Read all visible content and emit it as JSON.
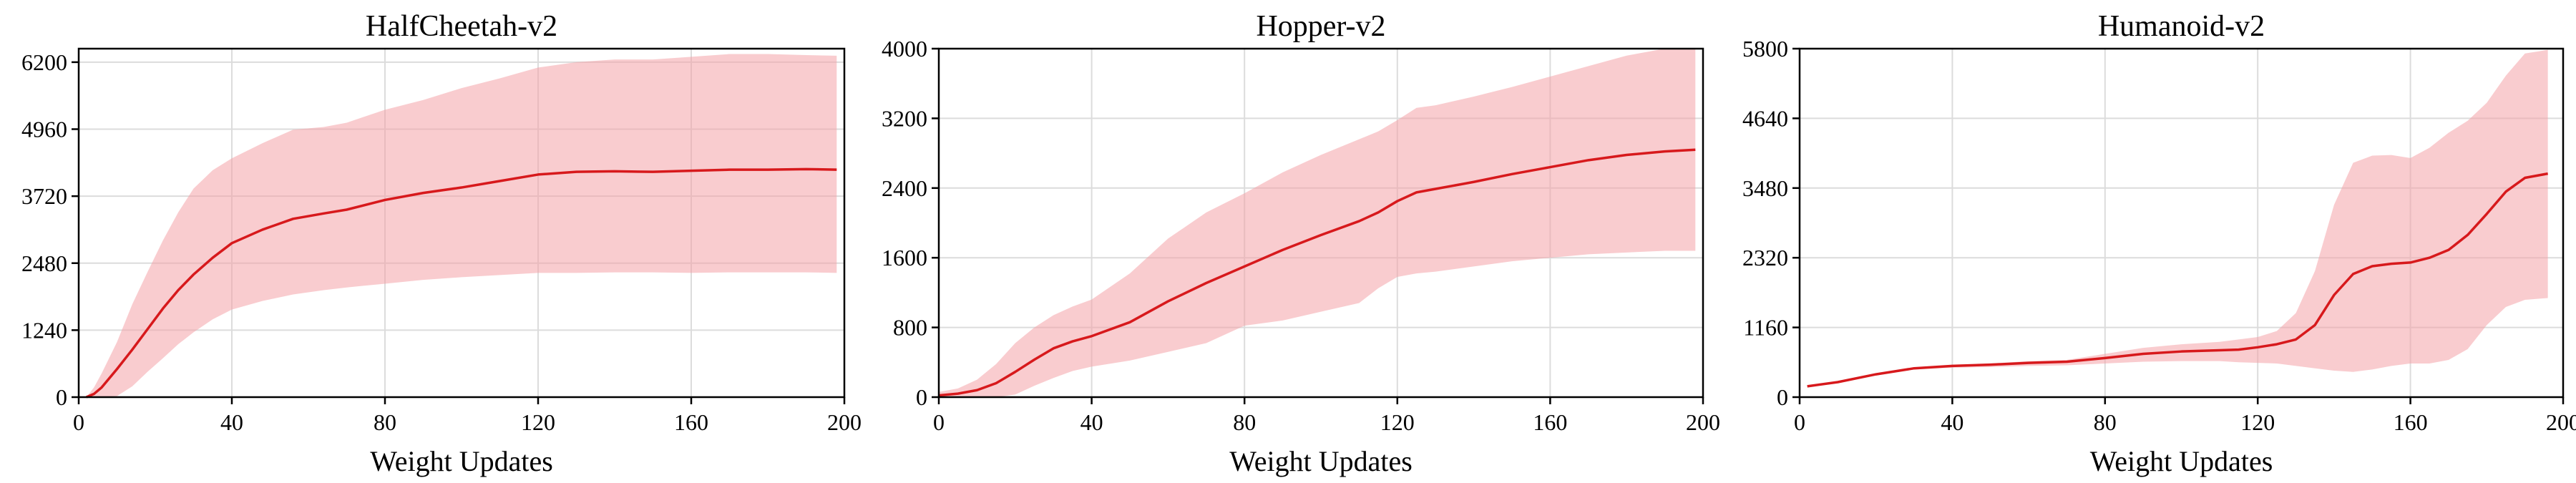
{
  "chart_data": [
    {
      "type": "line",
      "title": "HalfCheetah-v2",
      "xlabel": "Weight Updates",
      "ylabel": "",
      "xlim": [
        0,
        200
      ],
      "ylim": [
        0,
        6450
      ],
      "xticks": [
        "0",
        "40",
        "80",
        "120",
        "160",
        "200"
      ],
      "yticks": [
        "0",
        "1240",
        "2480",
        "3720",
        "4960",
        "6200"
      ],
      "grid": true,
      "colors": {
        "line": "#d7191c",
        "band": "#f4a3a8"
      },
      "series": [
        {
          "x": [
            2,
            4,
            6,
            10,
            14,
            18,
            22,
            26,
            30,
            35,
            40,
            48,
            56,
            64,
            70,
            80,
            90,
            100,
            110,
            120,
            130,
            140,
            150,
            160,
            170,
            180,
            190,
            198
          ],
          "mean": [
            0,
            60,
            180,
            520,
            880,
            1260,
            1640,
            1980,
            2270,
            2580,
            2850,
            3100,
            3300,
            3400,
            3470,
            3650,
            3780,
            3880,
            4000,
            4120,
            4170,
            4180,
            4170,
            4190,
            4210,
            4210,
            4220,
            4210
          ],
          "lower": [
            0,
            0,
            0,
            20,
            200,
            470,
            720,
            980,
            1200,
            1440,
            1620,
            1780,
            1900,
            1980,
            2030,
            2100,
            2170,
            2220,
            2260,
            2300,
            2300,
            2310,
            2310,
            2300,
            2310,
            2310,
            2310,
            2300
          ],
          "upper": [
            0,
            180,
            440,
            1020,
            1720,
            2320,
            2900,
            3420,
            3860,
            4200,
            4420,
            4700,
            4950,
            5000,
            5080,
            5320,
            5500,
            5720,
            5900,
            6100,
            6200,
            6250,
            6250,
            6300,
            6350,
            6350,
            6330,
            6320
          ]
        }
      ]
    },
    {
      "type": "line",
      "title": "Hopper-v2",
      "xlabel": "Weight Updates",
      "ylabel": "",
      "xlim": [
        0,
        200
      ],
      "ylim": [
        0,
        4000
      ],
      "xticks": [
        "0",
        "40",
        "80",
        "120",
        "160",
        "200"
      ],
      "yticks": [
        "0",
        "800",
        "1600",
        "2400",
        "3200",
        "4000"
      ],
      "grid": true,
      "colors": {
        "line": "#d7191c",
        "band": "#f4a3a8"
      },
      "series": [
        {
          "x": [
            0,
            5,
            10,
            15,
            20,
            25,
            30,
            35,
            40,
            50,
            60,
            70,
            80,
            90,
            100,
            110,
            115,
            120,
            125,
            130,
            140,
            150,
            160,
            170,
            180,
            190,
            198
          ],
          "mean": [
            20,
            40,
            80,
            160,
            290,
            430,
            560,
            640,
            700,
            860,
            1100,
            1310,
            1500,
            1690,
            1860,
            2020,
            2120,
            2250,
            2350,
            2390,
            2470,
            2560,
            2640,
            2720,
            2780,
            2820,
            2840
          ],
          "lower": [
            0,
            0,
            0,
            0,
            30,
            130,
            220,
            300,
            350,
            420,
            520,
            620,
            820,
            880,
            980,
            1080,
            1250,
            1380,
            1420,
            1440,
            1500,
            1560,
            1600,
            1640,
            1660,
            1680,
            1680
          ],
          "upper": [
            60,
            100,
            200,
            380,
            620,
            800,
            940,
            1040,
            1120,
            1420,
            1820,
            2120,
            2340,
            2580,
            2780,
            2960,
            3050,
            3180,
            3320,
            3350,
            3450,
            3560,
            3680,
            3800,
            3920,
            4000,
            4000
          ]
        }
      ]
    },
    {
      "type": "line",
      "title": "Humanoid-v2",
      "xlabel": "Weight Updates",
      "ylabel": "",
      "xlim": [
        0,
        200
      ],
      "ylim": [
        0,
        5800
      ],
      "xticks": [
        "0",
        "40",
        "80",
        "120",
        "160",
        "200"
      ],
      "yticks": [
        "0",
        "1160",
        "2320",
        "3480",
        "4640",
        "5800"
      ],
      "grid": true,
      "colors": {
        "line": "#d7191c",
        "band": "#f4a3a8"
      },
      "series": [
        {
          "x": [
            2,
            10,
            20,
            30,
            40,
            50,
            60,
            70,
            80,
            90,
            100,
            110,
            115,
            120,
            125,
            130,
            135,
            140,
            145,
            150,
            155,
            160,
            165,
            170,
            175,
            180,
            185,
            190,
            196
          ],
          "mean": [
            180,
            250,
            380,
            480,
            520,
            540,
            570,
            590,
            650,
            720,
            760,
            780,
            790,
            830,
            880,
            960,
            1200,
            1700,
            2050,
            2180,
            2220,
            2240,
            2320,
            2450,
            2700,
            3050,
            3420,
            3650,
            3720
          ],
          "lower": [
            180,
            250,
            370,
            460,
            490,
            500,
            520,
            530,
            560,
            590,
            600,
            600,
            580,
            570,
            560,
            520,
            480,
            440,
            420,
            460,
            520,
            560,
            560,
            620,
            800,
            1200,
            1500,
            1620,
            1650
          ],
          "upper": [
            180,
            250,
            380,
            490,
            530,
            560,
            600,
            620,
            720,
            820,
            880,
            920,
            960,
            1000,
            1100,
            1400,
            2100,
            3200,
            3900,
            4020,
            4030,
            3980,
            4150,
            4400,
            4600,
            4900,
            5350,
            5720,
            5780
          ]
        }
      ]
    }
  ]
}
